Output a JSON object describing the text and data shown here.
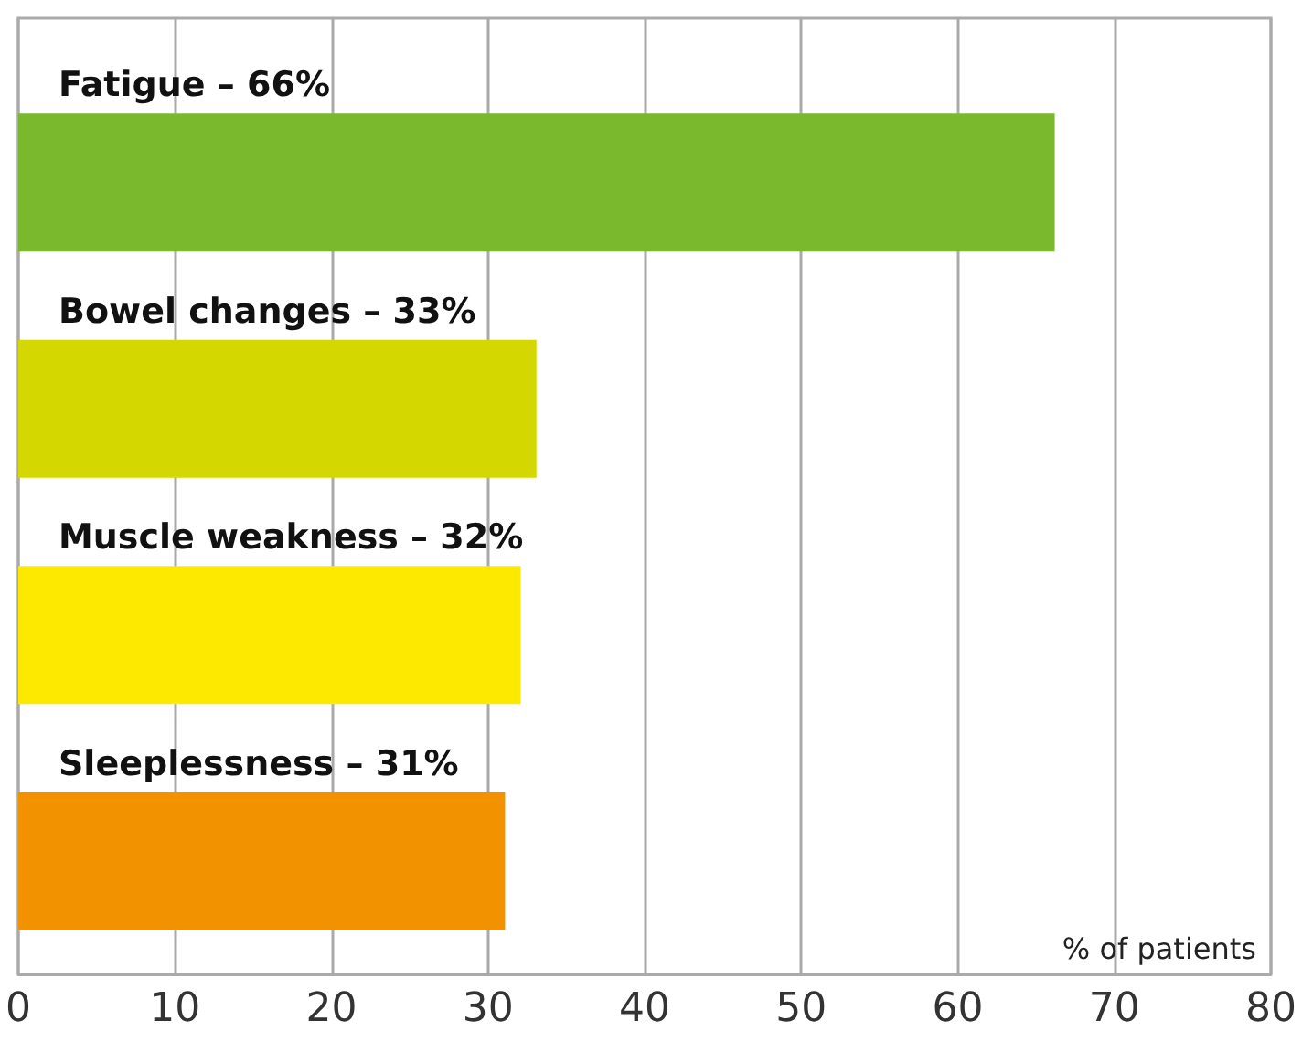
{
  "chart_data": {
    "type": "bar",
    "orientation": "horizontal",
    "xlabel": "% of patients",
    "categories": [
      "Fatigue – 66%",
      "Bowel changes – 33%",
      "Muscle weakness – 32%",
      "Sleeplessness – 31%"
    ],
    "values": [
      66,
      33,
      32,
      31
    ],
    "colors": [
      "#7ab82e",
      "#d4d800",
      "#fde900",
      "#f39200"
    ],
    "xlim": [
      0,
      80
    ],
    "xticks": [
      0,
      10,
      20,
      30,
      40,
      50,
      60,
      70,
      80
    ],
    "grid": "x"
  }
}
